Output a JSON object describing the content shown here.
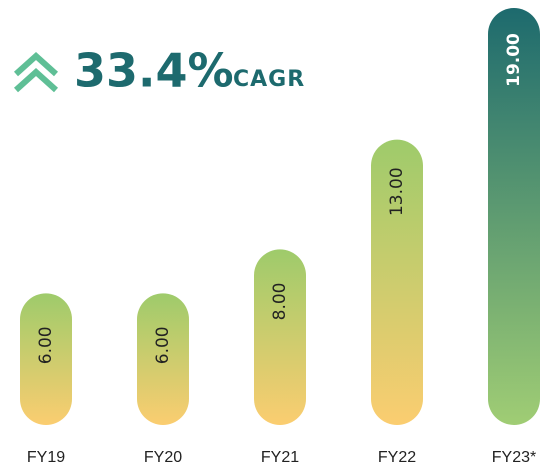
{
  "chart_data": {
    "type": "bar",
    "annotations": [
      "33.4%",
      "CAGR"
    ],
    "categories": [
      "FY19",
      "FY20",
      "FY21",
      "FY22",
      "FY23*"
    ],
    "values": [
      6,
      6,
      8,
      13,
      19
    ],
    "value_labels": [
      "6.00",
      "6.00",
      "8.00",
      "13.00",
      "19.00"
    ],
    "colors": [
      {
        "top": "#9ecb6b",
        "bottom": "#fbcd70"
      },
      {
        "top": "#9ecb6b",
        "bottom": "#fbcd70"
      },
      {
        "top": "#9ecb6b",
        "bottom": "#fbcd70"
      },
      {
        "top": "#9ecb6b",
        "bottom": "#fbcd70"
      },
      {
        "top": "#1d6a6e",
        "bottom": "#a0cd74"
      }
    ]
  }
}
